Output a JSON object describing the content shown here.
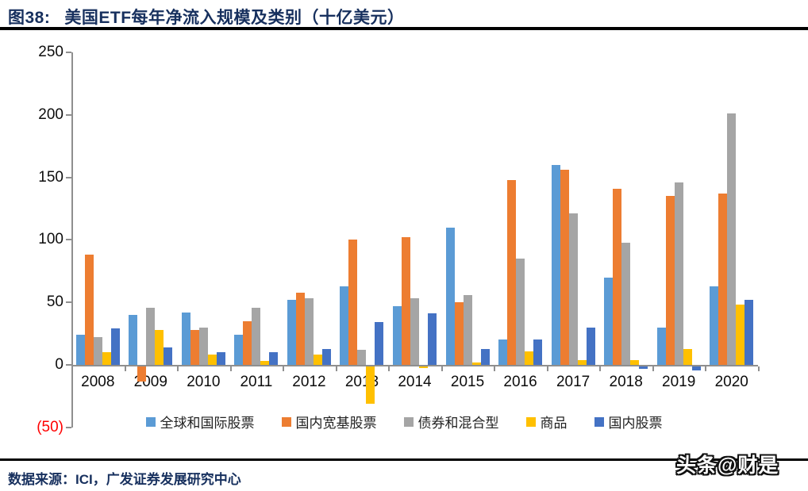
{
  "header": {
    "figure_label": "图38:",
    "title": "美国ETF每年净流入规模及类别（十亿美元）"
  },
  "chart_data": {
    "type": "bar",
    "title": "美国ETF每年净流入规模及类别（十亿美元）",
    "categories": [
      "2008",
      "2009",
      "2010",
      "2011",
      "2012",
      "2013",
      "2014",
      "2015",
      "2016",
      "2017",
      "2018",
      "2019",
      "2020"
    ],
    "series": [
      {
        "key": "global-intl-equity",
        "name": "全球和国际股票",
        "color": "#5B9BD5",
        "values": [
          24,
          40,
          42,
          24,
          52,
          63,
          47,
          110,
          20,
          160,
          70,
          30,
          63
        ]
      },
      {
        "key": "domestic-broad-equity",
        "name": "国内宽基股票",
        "color": "#ED7D31",
        "values": [
          88,
          -12,
          28,
          35,
          58,
          100,
          102,
          50,
          148,
          156,
          141,
          135,
          137
        ]
      },
      {
        "key": "bond-and-hybrid",
        "name": "债券和混合型",
        "color": "#A5A5A5",
        "values": [
          22,
          46,
          30,
          46,
          53,
          12,
          53,
          56,
          85,
          121,
          98,
          146,
          201
        ]
      },
      {
        "key": "commodity",
        "name": "商品",
        "color": "#FFC000",
        "values": [
          10,
          28,
          8,
          3,
          8,
          -30,
          -1,
          2,
          11,
          4,
          4,
          13,
          48
        ]
      },
      {
        "key": "domestic-equity",
        "name": "国内股票",
        "color": "#4472C4",
        "values": [
          29,
          14,
          10,
          10,
          13,
          34,
          41,
          13,
          20,
          30,
          -2,
          -3,
          52
        ]
      }
    ],
    "ylim": [
      -50,
      250
    ],
    "yticks": [
      250,
      200,
      150,
      100,
      50,
      0,
      -50
    ],
    "negative_tick_label": "(50)",
    "negative_tick_color": "#FF0000",
    "grid": false,
    "legend_position": "bottom",
    "axis_color": "#8f8f8f"
  },
  "footer": {
    "source": "数据来源：ICI，广发证券发展研究中心"
  },
  "watermark": "头条@财是"
}
